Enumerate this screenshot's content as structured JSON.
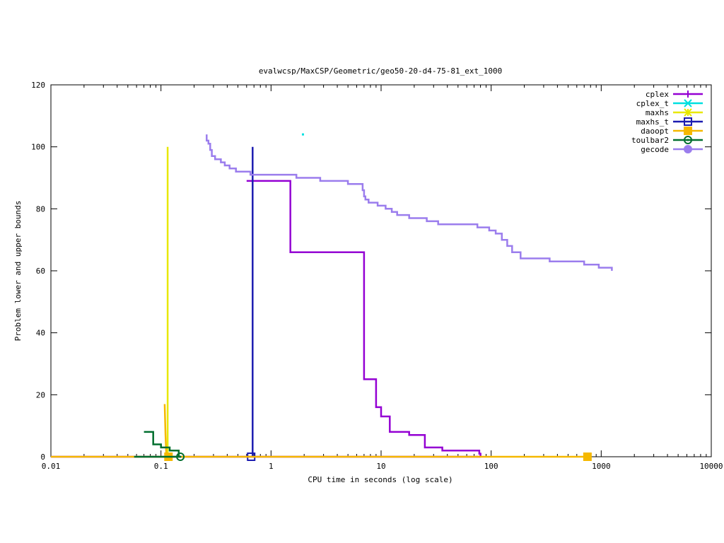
{
  "chart_data": {
    "type": "line",
    "title": "evalwcsp/MaxCSP/Geometric/geo50-20-d4-75-81_ext_1000",
    "xlabel": "CPU time in seconds (log scale)",
    "ylabel": "Problem lower and upper bounds",
    "x_scale": "log",
    "xlim": [
      0.01,
      10000
    ],
    "ylim": [
      0,
      120
    ],
    "x_ticks": [
      {
        "value": 0.01,
        "label": "0.01"
      },
      {
        "value": 0.1,
        "label": "0.1"
      },
      {
        "value": 1,
        "label": "1"
      },
      {
        "value": 10,
        "label": "10"
      },
      {
        "value": 100,
        "label": "100"
      },
      {
        "value": 1000,
        "label": "1000"
      },
      {
        "value": 10000,
        "label": "10000"
      }
    ],
    "y_ticks": [
      {
        "value": 0,
        "label": "0"
      },
      {
        "value": 20,
        "label": "20"
      },
      {
        "value": 40,
        "label": "40"
      },
      {
        "value": 60,
        "label": "60"
      },
      {
        "value": 80,
        "label": "80"
      },
      {
        "value": 100,
        "label": "100"
      },
      {
        "value": 120,
        "label": "120"
      }
    ],
    "grid": false,
    "legend_position": "top-right",
    "series": [
      {
        "name": "cplex",
        "color": "#9400d3",
        "marker": "plus",
        "step": true,
        "points": [
          [
            0.6,
            89
          ],
          [
            1.5,
            89
          ],
          [
            1.5,
            66
          ],
          [
            7,
            66
          ],
          [
            7,
            25
          ],
          [
            9,
            25
          ],
          [
            9,
            16
          ],
          [
            10,
            16
          ],
          [
            10,
            13
          ],
          [
            12,
            13
          ],
          [
            12,
            8
          ],
          [
            18,
            8
          ],
          [
            18,
            7
          ],
          [
            25,
            7
          ],
          [
            25,
            3
          ],
          [
            36,
            3
          ],
          [
            36,
            2
          ],
          [
            78,
            2
          ],
          [
            78,
            1
          ],
          [
            80,
            1
          ],
          [
            80,
            0
          ]
        ],
        "lower_points": [
          [
            0.01,
            0
          ],
          [
            80,
            0
          ]
        ]
      },
      {
        "name": "cplex_t",
        "color": "#00e0e0",
        "marker": "x",
        "step": false,
        "points": [
          [
            1.95,
            104
          ]
        ]
      },
      {
        "name": "maxhs",
        "color": "#e8e800",
        "marker": "star",
        "step": false,
        "points": [
          [
            0.115,
            0
          ],
          [
            0.115,
            100
          ]
        ]
      },
      {
        "name": "maxhs_t",
        "color": "#1c1cb0",
        "marker": "open-square",
        "step": false,
        "points": [
          [
            0.68,
            0
          ],
          [
            0.68,
            100
          ]
        ],
        "marker_points": [
          [
            0.66,
            0
          ]
        ]
      },
      {
        "name": "daoopt",
        "color": "#f5b800",
        "marker": "filled-square",
        "step": false,
        "points": [
          [
            0.108,
            17
          ],
          [
            0.11,
            7
          ],
          [
            0.112,
            0
          ]
        ],
        "lower_points": [
          [
            0.01,
            0
          ],
          [
            750,
            0
          ]
        ],
        "marker_points": [
          [
            0.117,
            0
          ],
          [
            750,
            0
          ]
        ]
      },
      {
        "name": "toulbar2",
        "color": "#006e2e",
        "marker": "open-circle",
        "step": true,
        "points": [
          [
            0.07,
            8
          ],
          [
            0.085,
            8
          ],
          [
            0.085,
            4
          ],
          [
            0.1,
            4
          ],
          [
            0.1,
            3
          ],
          [
            0.12,
            3
          ],
          [
            0.12,
            2
          ],
          [
            0.145,
            2
          ],
          [
            0.145,
            0
          ]
        ],
        "lower_points": [
          [
            0.057,
            0
          ],
          [
            0.15,
            0
          ]
        ],
        "marker_points": [
          [
            0.15,
            0
          ]
        ]
      },
      {
        "name": "gecode",
        "color": "#9b7ded",
        "marker": "filled-circle",
        "step": true,
        "points": [
          [
            0.26,
            104
          ],
          [
            0.26,
            102
          ],
          [
            0.27,
            102
          ],
          [
            0.27,
            101
          ],
          [
            0.28,
            101
          ],
          [
            0.28,
            99
          ],
          [
            0.29,
            99
          ],
          [
            0.29,
            97
          ],
          [
            0.31,
            97
          ],
          [
            0.31,
            96
          ],
          [
            0.35,
            96
          ],
          [
            0.35,
            95
          ],
          [
            0.38,
            95
          ],
          [
            0.38,
            94
          ],
          [
            0.42,
            94
          ],
          [
            0.42,
            93
          ],
          [
            0.48,
            93
          ],
          [
            0.48,
            92
          ],
          [
            0.65,
            92
          ],
          [
            0.65,
            91
          ],
          [
            1.7,
            91
          ],
          [
            1.7,
            90
          ],
          [
            2.8,
            90
          ],
          [
            2.8,
            89
          ],
          [
            5,
            89
          ],
          [
            5,
            88
          ],
          [
            6.8,
            88
          ],
          [
            6.8,
            86
          ],
          [
            7,
            86
          ],
          [
            7,
            84
          ],
          [
            7.2,
            84
          ],
          [
            7.2,
            83
          ],
          [
            7.7,
            83
          ],
          [
            7.7,
            82
          ],
          [
            9.3,
            82
          ],
          [
            9.3,
            81
          ],
          [
            11,
            81
          ],
          [
            11,
            80
          ],
          [
            12.5,
            80
          ],
          [
            12.5,
            79
          ],
          [
            14,
            79
          ],
          [
            14,
            78
          ],
          [
            18,
            78
          ],
          [
            18,
            77
          ],
          [
            26,
            77
          ],
          [
            26,
            76
          ],
          [
            33,
            76
          ],
          [
            33,
            75
          ],
          [
            75,
            75
          ],
          [
            75,
            74
          ],
          [
            96,
            74
          ],
          [
            96,
            73
          ],
          [
            110,
            73
          ],
          [
            110,
            72
          ],
          [
            125,
            72
          ],
          [
            125,
            70
          ],
          [
            140,
            70
          ],
          [
            140,
            68
          ],
          [
            155,
            68
          ],
          [
            155,
            66
          ],
          [
            185,
            66
          ],
          [
            185,
            64
          ],
          [
            340,
            64
          ],
          [
            340,
            63
          ],
          [
            700,
            63
          ],
          [
            700,
            62
          ],
          [
            950,
            62
          ],
          [
            950,
            61
          ],
          [
            1250,
            61
          ],
          [
            1250,
            60
          ]
        ]
      }
    ]
  }
}
